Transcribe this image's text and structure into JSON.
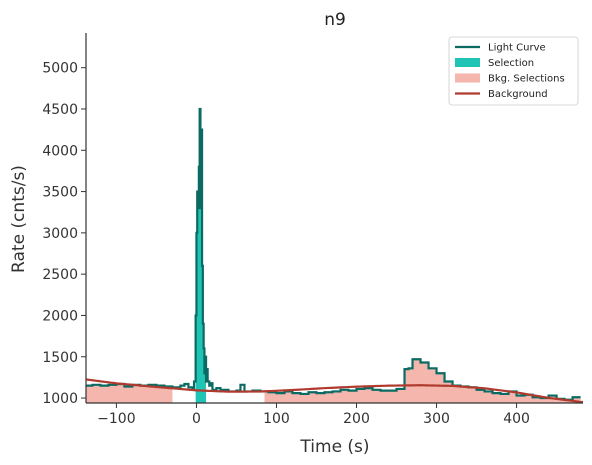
{
  "chart_data": {
    "type": "line",
    "title": "n9",
    "xlabel": "Time (s)",
    "ylabel": "Rate (cnts/s)",
    "xlim": [
      -138,
      483
    ],
    "ylim": [
      940,
      5420
    ],
    "xticks": [
      -100,
      0,
      100,
      200,
      300,
      400
    ],
    "yticks": [
      1000,
      1500,
      2000,
      2500,
      3000,
      3500,
      4000,
      4500,
      5000
    ],
    "grid": false,
    "legend_position": "top-right",
    "colors": {
      "light_curve": "#0b6b63",
      "selection": "#20c4b4",
      "bkg_selection": "#f4b6ad",
      "background": "#b03a2e"
    },
    "legend": [
      {
        "label": "Light Curve",
        "kind": "line",
        "color": "#0b6b63"
      },
      {
        "label": "Selection",
        "kind": "patch",
        "color": "#20c4b4"
      },
      {
        "label": "Bkg. Selections",
        "kind": "patch",
        "color": "#f4b6ad"
      },
      {
        "label": "Background",
        "kind": "line",
        "color": "#b03a2e"
      }
    ],
    "light_curve": {
      "name": "Light Curve",
      "step_edges": [
        -140,
        -130,
        -120,
        -110,
        -100,
        -90,
        -80,
        -70,
        -60,
        -50,
        -40,
        -30,
        -20,
        -15,
        -10,
        -5,
        -3,
        -1,
        0,
        1,
        2,
        3,
        4,
        5,
        6,
        7,
        8,
        9,
        10,
        11,
        12,
        13,
        14,
        16,
        18,
        20,
        25,
        30,
        40,
        50,
        55,
        60,
        70,
        80,
        90,
        100,
        110,
        120,
        130,
        140,
        150,
        160,
        170,
        180,
        190,
        200,
        210,
        220,
        230,
        240,
        250,
        260,
        265,
        270,
        280,
        290,
        300,
        310,
        320,
        330,
        340,
        350,
        360,
        370,
        380,
        390,
        400,
        410,
        420,
        430,
        440,
        450,
        460,
        470,
        480
      ],
      "step_values": [
        1150,
        1160,
        1150,
        1160,
        1170,
        1140,
        1160,
        1150,
        1160,
        1150,
        1140,
        1130,
        1150,
        1170,
        1130,
        1100,
        1200,
        2000,
        3000,
        3500,
        3300,
        3800,
        4500,
        3300,
        4250,
        2600,
        1900,
        1600,
        1300,
        1500,
        1200,
        1350,
        1200,
        1150,
        1180,
        1100,
        1120,
        1100,
        1080,
        1090,
        1160,
        1080,
        1090,
        1080,
        1070,
        1060,
        1080,
        1060,
        1050,
        1070,
        1060,
        1070,
        1080,
        1100,
        1090,
        1110,
        1120,
        1100,
        1090,
        1090,
        1110,
        1350,
        1360,
        1470,
        1430,
        1360,
        1300,
        1200,
        1150,
        1140,
        1130,
        1100,
        1080,
        1060,
        1050,
        1080,
        1030,
        1040,
        1010,
        1000,
        1030,
        990,
        980,
        1010
      ]
    },
    "background_model": {
      "name": "Background",
      "x": [
        -138,
        -100,
        -60,
        -20,
        0,
        40,
        80,
        120,
        160,
        200,
        240,
        280,
        320,
        360,
        400,
        440,
        480
      ],
      "y": [
        1225,
        1178,
        1142,
        1110,
        1093,
        1077,
        1079,
        1097,
        1120,
        1138,
        1150,
        1155,
        1147,
        1118,
        1068,
        1002,
        953
      ]
    },
    "selection": {
      "name": "Selection",
      "ranges": [
        [
          -1,
          12
        ]
      ]
    },
    "bkg_selections": {
      "name": "Bkg. Selections",
      "ranges": [
        [
          -140,
          -30
        ],
        [
          85,
          483
        ]
      ]
    }
  }
}
